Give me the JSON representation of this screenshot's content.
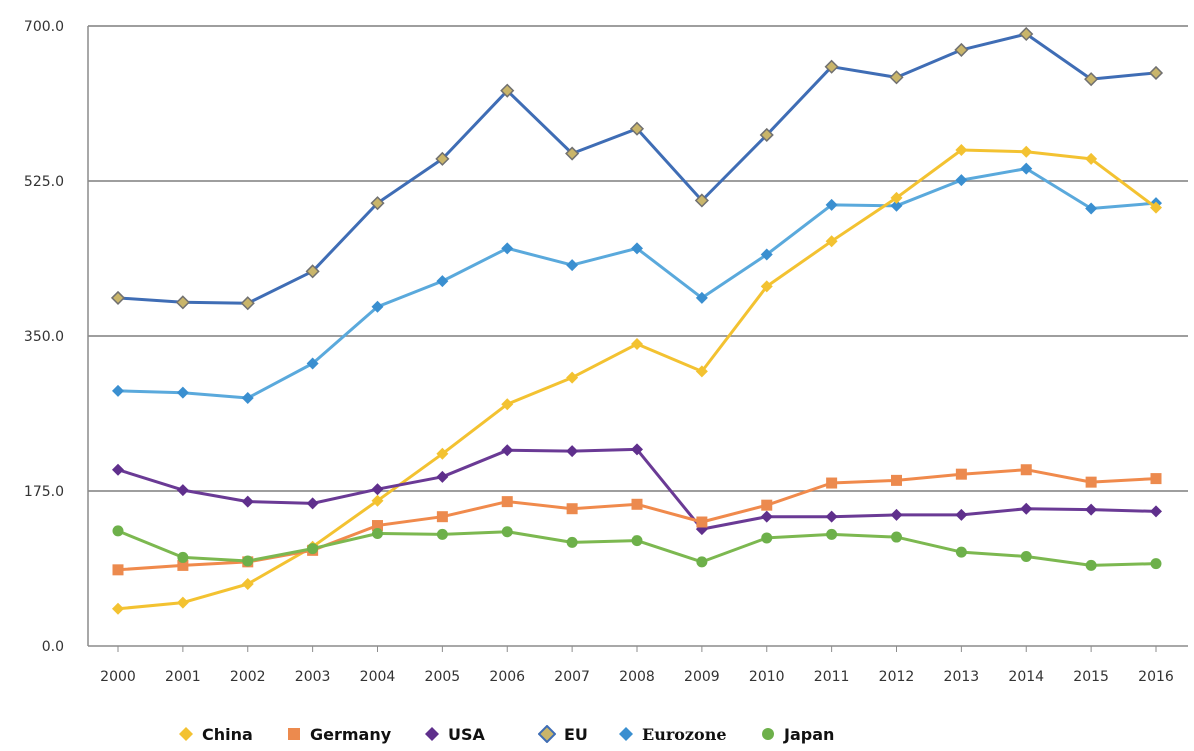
{
  "chart_data": {
    "type": "line",
    "title": "",
    "xlabel": "",
    "ylabel": "",
    "x": [
      "2000",
      "2001",
      "2002",
      "2003",
      "2004",
      "2005",
      "2006",
      "2007",
      "2008",
      "2009",
      "2010",
      "2011",
      "2012",
      "2013",
      "2014",
      "2015",
      "2016"
    ],
    "ylim": [
      0,
      700
    ],
    "yticks": [
      "0.0",
      "175.0",
      "350.0",
      "525.0",
      "700.0"
    ],
    "ytick_values": [
      0,
      175,
      350,
      525,
      700
    ],
    "grid": "horizontal",
    "legend_position": "bottom",
    "series": [
      {
        "name": "EU",
        "key": "eu",
        "color": "#3f6db5",
        "marker": "diamond-outline",
        "marker_color": "#c9b56a",
        "values": [
          393,
          388,
          387,
          423,
          500,
          550,
          627,
          556,
          584,
          503,
          577,
          654,
          642,
          673,
          691,
          640,
          647
        ]
      },
      {
        "name": "Eurozone",
        "key": "eurozone",
        "color": "#5aa9dc",
        "marker": "diamond",
        "marker_color": "#3a8fd0",
        "values": [
          288,
          286,
          280,
          319,
          383,
          412,
          449,
          430,
          449,
          393,
          442,
          498,
          497,
          526,
          539,
          494,
          500
        ]
      },
      {
        "name": "China",
        "key": "china",
        "color": "#f3c231",
        "marker": "diamond",
        "marker_color": "#f3c231",
        "values": [
          42,
          49,
          70,
          112,
          164,
          217,
          273,
          303,
          341,
          310,
          406,
          457,
          506,
          560,
          558,
          550,
          495
        ]
      },
      {
        "name": "USA",
        "key": "usa",
        "color": "#6a3a95",
        "marker": "diamond",
        "marker_color": "#5f2f8c",
        "values": [
          199,
          176,
          163,
          161,
          177,
          191,
          221,
          220,
          222,
          132,
          146,
          146,
          148,
          148,
          155,
          154,
          152
        ]
      },
      {
        "name": "Germany",
        "key": "germany",
        "color": "#f08a4c",
        "marker": "square",
        "marker_color": "#ec8a4e",
        "values": [
          86,
          91,
          95,
          108,
          136,
          146,
          163,
          155,
          160,
          140,
          159,
          184,
          187,
          194,
          199,
          185,
          189
        ]
      },
      {
        "name": "Japan",
        "key": "japan",
        "color": "#7cb850",
        "marker": "circle",
        "marker_color": "#6db04a",
        "values": [
          130,
          100,
          96,
          110,
          127,
          126,
          129,
          117,
          119,
          95,
          122,
          126,
          123,
          106,
          101,
          91,
          93
        ]
      }
    ]
  },
  "legend": [
    {
      "key": "china",
      "label": "China",
      "marker": "diamond",
      "color": "#f3c231"
    },
    {
      "key": "germany",
      "label": "Germany",
      "marker": "square",
      "color": "#ec8a4e"
    },
    {
      "key": "usa",
      "label": "USA",
      "marker": "diamond",
      "color": "#5f2f8c"
    },
    {
      "key": "eu",
      "label": "EU",
      "marker": "diamond-outline",
      "color": "#c9b56a"
    },
    {
      "key": "eurozone",
      "label": "Eurozone",
      "marker": "diamond",
      "color": "#3a8fd0"
    },
    {
      "key": "japan",
      "label": "Japan",
      "marker": "circle",
      "color": "#6db04a"
    }
  ]
}
